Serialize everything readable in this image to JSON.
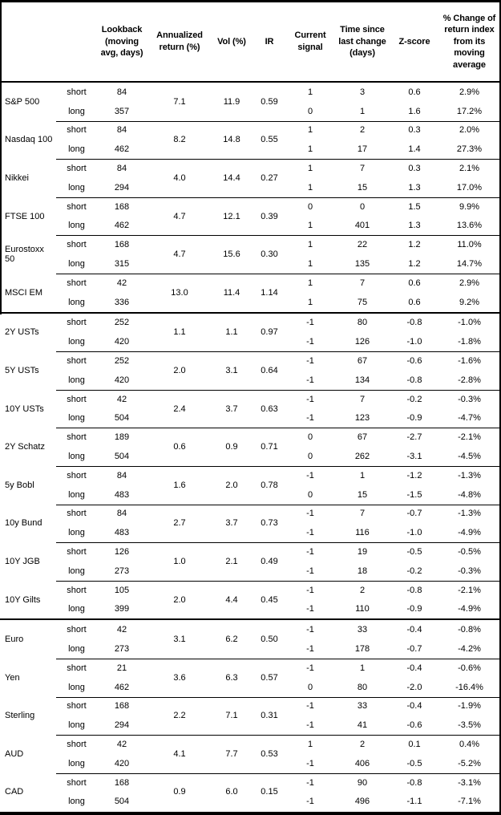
{
  "table": {
    "header": {
      "lookback": "Lookback\n(moving\navg, days)",
      "annualized_return": "Annualized\nreturn (%)",
      "vol": "Vol (%)",
      "ir": "IR",
      "current_signal": "Current\nsignal",
      "time_since": "Time since\nlast change\n(days)",
      "z_score": "Z-score",
      "pct_change": "% Change of\nreturn index\nfrom its\nmoving\naverage"
    },
    "row_labels": {
      "short": "short",
      "long": "long"
    },
    "sections": [
      {
        "groups": [
          {
            "asset": "S&P 500",
            "annualized_return": "7.1",
            "vol": "11.9",
            "ir": "0.59",
            "short": {
              "lookback": "84",
              "signal": "1",
              "time_since": "3",
              "z_score": "0.6",
              "pct_change": "2.9%"
            },
            "long": {
              "lookback": "357",
              "signal": "0",
              "time_since": "1",
              "z_score": "1.6",
              "pct_change": "17.2%"
            }
          },
          {
            "asset": "Nasdaq 100",
            "annualized_return": "8.2",
            "vol": "14.8",
            "ir": "0.55",
            "short": {
              "lookback": "84",
              "signal": "1",
              "time_since": "2",
              "z_score": "0.3",
              "pct_change": "2.0%"
            },
            "long": {
              "lookback": "462",
              "signal": "1",
              "time_since": "17",
              "z_score": "1.4",
              "pct_change": "27.3%"
            }
          },
          {
            "asset": "Nikkei",
            "annualized_return": "4.0",
            "vol": "14.4",
            "ir": "0.27",
            "short": {
              "lookback": "84",
              "signal": "1",
              "time_since": "7",
              "z_score": "0.3",
              "pct_change": "2.1%"
            },
            "long": {
              "lookback": "294",
              "signal": "1",
              "time_since": "15",
              "z_score": "1.3",
              "pct_change": "17.0%"
            }
          },
          {
            "asset": "FTSE 100",
            "annualized_return": "4.7",
            "vol": "12.1",
            "ir": "0.39",
            "short": {
              "lookback": "168",
              "signal": "0",
              "time_since": "0",
              "z_score": "1.5",
              "pct_change": "9.9%"
            },
            "long": {
              "lookback": "462",
              "signal": "1",
              "time_since": "401",
              "z_score": "1.3",
              "pct_change": "13.6%"
            }
          },
          {
            "asset": "Eurostoxx 50",
            "annualized_return": "4.7",
            "vol": "15.6",
            "ir": "0.30",
            "short": {
              "lookback": "168",
              "signal": "1",
              "time_since": "22",
              "z_score": "1.2",
              "pct_change": "11.0%"
            },
            "long": {
              "lookback": "315",
              "signal": "1",
              "time_since": "135",
              "z_score": "1.2",
              "pct_change": "14.7%"
            }
          },
          {
            "asset": "MSCI EM",
            "annualized_return": "13.0",
            "vol": "11.4",
            "ir": "1.14",
            "short": {
              "lookback": "42",
              "signal": "1",
              "time_since": "7",
              "z_score": "0.6",
              "pct_change": "2.9%"
            },
            "long": {
              "lookback": "336",
              "signal": "1",
              "time_since": "75",
              "z_score": "0.6",
              "pct_change": "9.2%"
            }
          }
        ]
      },
      {
        "groups": [
          {
            "asset": "2Y USTs",
            "annualized_return": "1.1",
            "vol": "1.1",
            "ir": "0.97",
            "short": {
              "lookback": "252",
              "signal": "-1",
              "time_since": "80",
              "z_score": "-0.8",
              "pct_change": "-1.0%"
            },
            "long": {
              "lookback": "420",
              "signal": "-1",
              "time_since": "126",
              "z_score": "-1.0",
              "pct_change": "-1.8%"
            }
          },
          {
            "asset": "5Y USTs",
            "annualized_return": "2.0",
            "vol": "3.1",
            "ir": "0.64",
            "short": {
              "lookback": "252",
              "signal": "-1",
              "time_since": "67",
              "z_score": "-0.6",
              "pct_change": "-1.6%"
            },
            "long": {
              "lookback": "420",
              "signal": "-1",
              "time_since": "134",
              "z_score": "-0.8",
              "pct_change": "-2.8%"
            }
          },
          {
            "asset": "10Y USTs",
            "annualized_return": "2.4",
            "vol": "3.7",
            "ir": "0.63",
            "short": {
              "lookback": "42",
              "signal": "-1",
              "time_since": "7",
              "z_score": "-0.2",
              "pct_change": "-0.3%"
            },
            "long": {
              "lookback": "504",
              "signal": "-1",
              "time_since": "123",
              "z_score": "-0.9",
              "pct_change": "-4.7%"
            }
          },
          {
            "asset": "2Y Schatz",
            "annualized_return": "0.6",
            "vol": "0.9",
            "ir": "0.71",
            "short": {
              "lookback": "189",
              "signal": "0",
              "time_since": "67",
              "z_score": "-2.7",
              "pct_change": "-2.1%"
            },
            "long": {
              "lookback": "504",
              "signal": "0",
              "time_since": "262",
              "z_score": "-3.1",
              "pct_change": "-4.5%"
            }
          },
          {
            "asset": "5y Bobl",
            "annualized_return": "1.6",
            "vol": "2.0",
            "ir": "0.78",
            "short": {
              "lookback": "84",
              "signal": "-1",
              "time_since": "1",
              "z_score": "-1.2",
              "pct_change": "-1.3%"
            },
            "long": {
              "lookback": "483",
              "signal": "0",
              "time_since": "15",
              "z_score": "-1.5",
              "pct_change": "-4.8%"
            }
          },
          {
            "asset": "10y Bund",
            "annualized_return": "2.7",
            "vol": "3.7",
            "ir": "0.73",
            "short": {
              "lookback": "84",
              "signal": "-1",
              "time_since": "7",
              "z_score": "-0.7",
              "pct_change": "-1.3%"
            },
            "long": {
              "lookback": "483",
              "signal": "-1",
              "time_since": "116",
              "z_score": "-1.0",
              "pct_change": "-4.9%"
            }
          },
          {
            "asset": "10Y JGB",
            "annualized_return": "1.0",
            "vol": "2.1",
            "ir": "0.49",
            "short": {
              "lookback": "126",
              "signal": "-1",
              "time_since": "19",
              "z_score": "-0.5",
              "pct_change": "-0.5%"
            },
            "long": {
              "lookback": "273",
              "signal": "-1",
              "time_since": "18",
              "z_score": "-0.2",
              "pct_change": "-0.3%"
            }
          },
          {
            "asset": "10Y Gilts",
            "annualized_return": "2.0",
            "vol": "4.4",
            "ir": "0.45",
            "short": {
              "lookback": "105",
              "signal": "-1",
              "time_since": "2",
              "z_score": "-0.8",
              "pct_change": "-2.1%"
            },
            "long": {
              "lookback": "399",
              "signal": "-1",
              "time_since": "110",
              "z_score": "-0.9",
              "pct_change": "-4.9%"
            }
          }
        ]
      },
      {
        "groups": [
          {
            "asset": "Euro",
            "annualized_return": "3.1",
            "vol": "6.2",
            "ir": "0.50",
            "short": {
              "lookback": "42",
              "signal": "-1",
              "time_since": "33",
              "z_score": "-0.4",
              "pct_change": "-0.8%"
            },
            "long": {
              "lookback": "273",
              "signal": "-1",
              "time_since": "178",
              "z_score": "-0.7",
              "pct_change": "-4.2%"
            }
          },
          {
            "asset": "Yen",
            "annualized_return": "3.6",
            "vol": "6.3",
            "ir": "0.57",
            "short": {
              "lookback": "21",
              "signal": "-1",
              "time_since": "1",
              "z_score": "-0.4",
              "pct_change": "-0.6%"
            },
            "long": {
              "lookback": "462",
              "signal": "0",
              "time_since": "80",
              "z_score": "-2.0",
              "pct_change": "-16.4%"
            }
          },
          {
            "asset": "Sterling",
            "annualized_return": "2.2",
            "vol": "7.1",
            "ir": "0.31",
            "short": {
              "lookback": "168",
              "signal": "-1",
              "time_since": "33",
              "z_score": "-0.4",
              "pct_change": "-1.9%"
            },
            "long": {
              "lookback": "294",
              "signal": "-1",
              "time_since": "41",
              "z_score": "-0.6",
              "pct_change": "-3.5%"
            }
          },
          {
            "asset": "AUD",
            "annualized_return": "4.1",
            "vol": "7.7",
            "ir": "0.53",
            "short": {
              "lookback": "42",
              "signal": "1",
              "time_since": "2",
              "z_score": "0.1",
              "pct_change": "0.4%"
            },
            "long": {
              "lookback": "420",
              "signal": "-1",
              "time_since": "406",
              "z_score": "-0.5",
              "pct_change": "-5.2%"
            }
          },
          {
            "asset": "CAD",
            "annualized_return": "0.9",
            "vol": "6.0",
            "ir": "0.15",
            "short": {
              "lookback": "168",
              "signal": "-1",
              "time_since": "90",
              "z_score": "-0.8",
              "pct_change": "-3.1%"
            },
            "long": {
              "lookback": "504",
              "signal": "-1",
              "time_since": "496",
              "z_score": "-1.1",
              "pct_change": "-7.1%"
            }
          }
        ]
      }
    ]
  }
}
